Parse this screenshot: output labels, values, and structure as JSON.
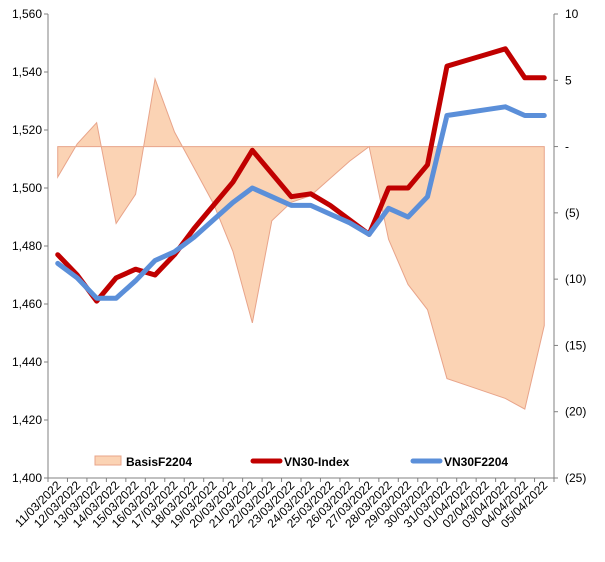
{
  "chart_data": {
    "type": "line",
    "categories": [
      "11/03/2022",
      "12/03/2022",
      "13/03/2022",
      "14/03/2022",
      "15/03/2022",
      "16/03/2022",
      "17/03/2022",
      "18/03/2022",
      "19/03/2022",
      "20/03/2022",
      "21/03/2022",
      "22/03/2022",
      "23/03/2022",
      "24/03/2022",
      "25/03/2022",
      "26/03/2022",
      "27/03/2022",
      "28/03/2022",
      "29/03/2022",
      "30/03/2022",
      "31/03/2022",
      "01/04/2022",
      "02/04/2022",
      "03/04/2022",
      "04/04/2022",
      "05/04/2022"
    ],
    "y_left": {
      "min": 1400,
      "max": 1560,
      "step": 20,
      "tick_labels": [
        "1,400",
        "1,420",
        "1,440",
        "1,460",
        "1,480",
        "1,500",
        "1,520",
        "1,540",
        "1,560"
      ]
    },
    "y_right": {
      "min": -25,
      "max": 10,
      "step": 5,
      "tick_labels": [
        "(25)",
        "(20)",
        "(15)",
        "(10)",
        "(5)",
        "-",
        "5",
        "10"
      ]
    },
    "grid": false,
    "legend_position": "bottom-inside",
    "series": [
      {
        "name": "BasisF2204",
        "kind": "area",
        "axis": "right",
        "color": "#FBD3B4",
        "stroke": "#E8A48A",
        "values": [
          -2.3,
          0.2,
          1.8,
          -5.8,
          -3.6,
          5.1,
          1.1,
          -1.6,
          -4.3,
          -7.9,
          -13.3,
          -5.6,
          -4.2,
          -3.7,
          -2.4,
          -1.1,
          0.0,
          -7.0,
          -10.4,
          -12.3,
          -17.5,
          -18.0,
          -18.5,
          -19.0,
          -19.8,
          -13.5
        ]
      },
      {
        "name": "VN30-Index",
        "kind": "line",
        "axis": "left",
        "color": "#C00000",
        "values": [
          1477,
          1470,
          1461,
          1469,
          1472,
          1470,
          1477,
          1486,
          1494,
          1502,
          1513,
          1505,
          1497,
          1498,
          1494,
          1489,
          1484,
          1500,
          1500,
          1508,
          1542,
          1544,
          1546,
          1548,
          1538,
          1538
        ]
      },
      {
        "name": "VN30F2204",
        "kind": "line",
        "axis": "left",
        "color": "#5B8FD9",
        "values": [
          1474,
          1469,
          1462,
          1462,
          1468,
          1475,
          1478,
          1483,
          1489,
          1495,
          1500,
          1497,
          1494,
          1494,
          1491,
          1488,
          1484,
          1493,
          1490,
          1497,
          1525,
          1526,
          1527,
          1528,
          1525,
          1525
        ]
      }
    ]
  }
}
